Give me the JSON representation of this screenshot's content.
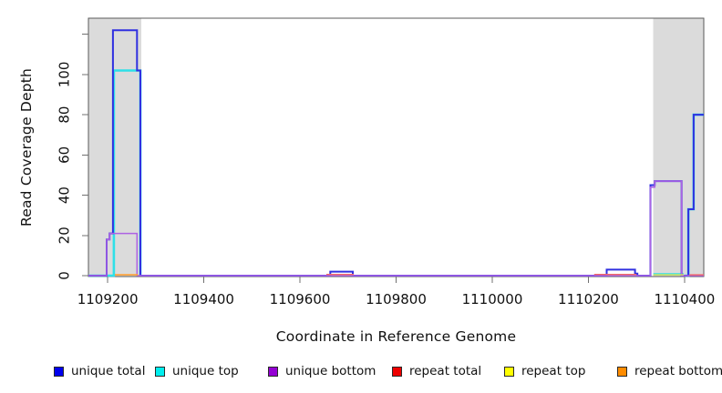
{
  "chart_data": {
    "type": "line",
    "subtype": "step-coverage",
    "title": "",
    "xlabel": "Coordinate in Reference Genome",
    "ylabel": "Read Coverage Depth",
    "xlim": [
      1109160,
      1110440
    ],
    "ylim": [
      0,
      128
    ],
    "grid": false,
    "x_ticks": [
      1109200,
      1109400,
      1109600,
      1109800,
      1110000,
      1110200,
      1110400
    ],
    "y_ticks": [
      0,
      20,
      40,
      60,
      80,
      100
    ],
    "y_ticks_unlabeled": [
      120
    ],
    "shaded_regions": [
      {
        "name": "left-repeat-region",
        "x0": 1109160,
        "x1": 1109270,
        "color": "#dbdbdb"
      },
      {
        "name": "right-repeat-region",
        "x0": 1110335,
        "x1": 1110440,
        "color": "#dbdbdb"
      }
    ],
    "series": [
      {
        "name": "unique top",
        "line_color": "#2ee0e8",
        "line_width": 2.6,
        "segments": [
          [
            [
              1109160,
              0
            ],
            [
              1109213,
              102
            ],
            [
              1109268,
              0
            ]
          ],
          [
            [
              1110335,
              0.7
            ],
            [
              1110398,
              0.7
            ]
          ],
          [
            [
              1110400,
              0
            ],
            [
              1110408,
              33
            ],
            [
              1110419,
              80
            ],
            [
              1110440,
              80
            ]
          ]
        ]
      },
      {
        "name": "unique total",
        "line_color": "#3030e0",
        "line_width": 2.0,
        "segments": [
          [
            [
              1109160,
              0
            ],
            [
              1109198,
              18
            ],
            [
              1109204,
              21
            ],
            [
              1109211,
              122
            ],
            [
              1109261,
              102
            ],
            [
              1109268,
              0
            ],
            [
              1109663,
              2
            ],
            [
              1109710,
              0
            ],
            [
              1110238,
              3
            ],
            [
              1110297,
              1
            ],
            [
              1110302,
              0
            ],
            [
              1110329,
              45
            ],
            [
              1110338,
              47
            ],
            [
              1110394,
              0
            ],
            [
              1110408,
              33
            ],
            [
              1110419,
              80
            ],
            [
              1110440,
              80
            ]
          ]
        ]
      },
      {
        "name": "unique bottom",
        "line_color": "#ad62e3",
        "line_width": 1.5,
        "segments": [
          [
            [
              1109160,
              0
            ],
            [
              1109198,
              18
            ],
            [
              1109204,
              21
            ],
            [
              1109261,
              0
            ],
            [
              1110329,
              44
            ],
            [
              1110338,
              47
            ],
            [
              1110394,
              0
            ],
            [
              1110440,
              0
            ]
          ]
        ]
      },
      {
        "name": "repeat total",
        "line_color": "#f26666",
        "line_width": 1.4,
        "segments": [
          [
            [
              1109655,
              0.6
            ],
            [
              1109712,
              0.6
            ]
          ],
          [
            [
              1110212,
              0.6
            ],
            [
              1110300,
              0.6
            ]
          ],
          [
            [
              1110410,
              0.4
            ],
            [
              1110440,
              0.4
            ]
          ]
        ]
      },
      {
        "name": "repeat top",
        "line_color": "#e3e34d",
        "line_width": 1.4,
        "segments": [
          [
            [
              1110335,
              0.4
            ],
            [
              1110398,
              0.4
            ]
          ]
        ]
      },
      {
        "name": "repeat bottom",
        "line_color": "#ffa033",
        "line_width": 1.6,
        "segments": [
          [
            [
              1109215,
              0.4
            ],
            [
              1109263,
              0.4
            ]
          ]
        ]
      }
    ],
    "legend_position": "bottom",
    "legend": [
      {
        "label": "unique total",
        "color": "#0000ee"
      },
      {
        "label": "unique top",
        "color": "#00eeee"
      },
      {
        "label": "unique bottom",
        "color": "#9400d3"
      },
      {
        "label": "repeat total",
        "color": "#ee0000"
      },
      {
        "label": "repeat top",
        "color": "#ffff00"
      },
      {
        "label": "repeat bottom",
        "color": "#ff8c00"
      }
    ]
  }
}
